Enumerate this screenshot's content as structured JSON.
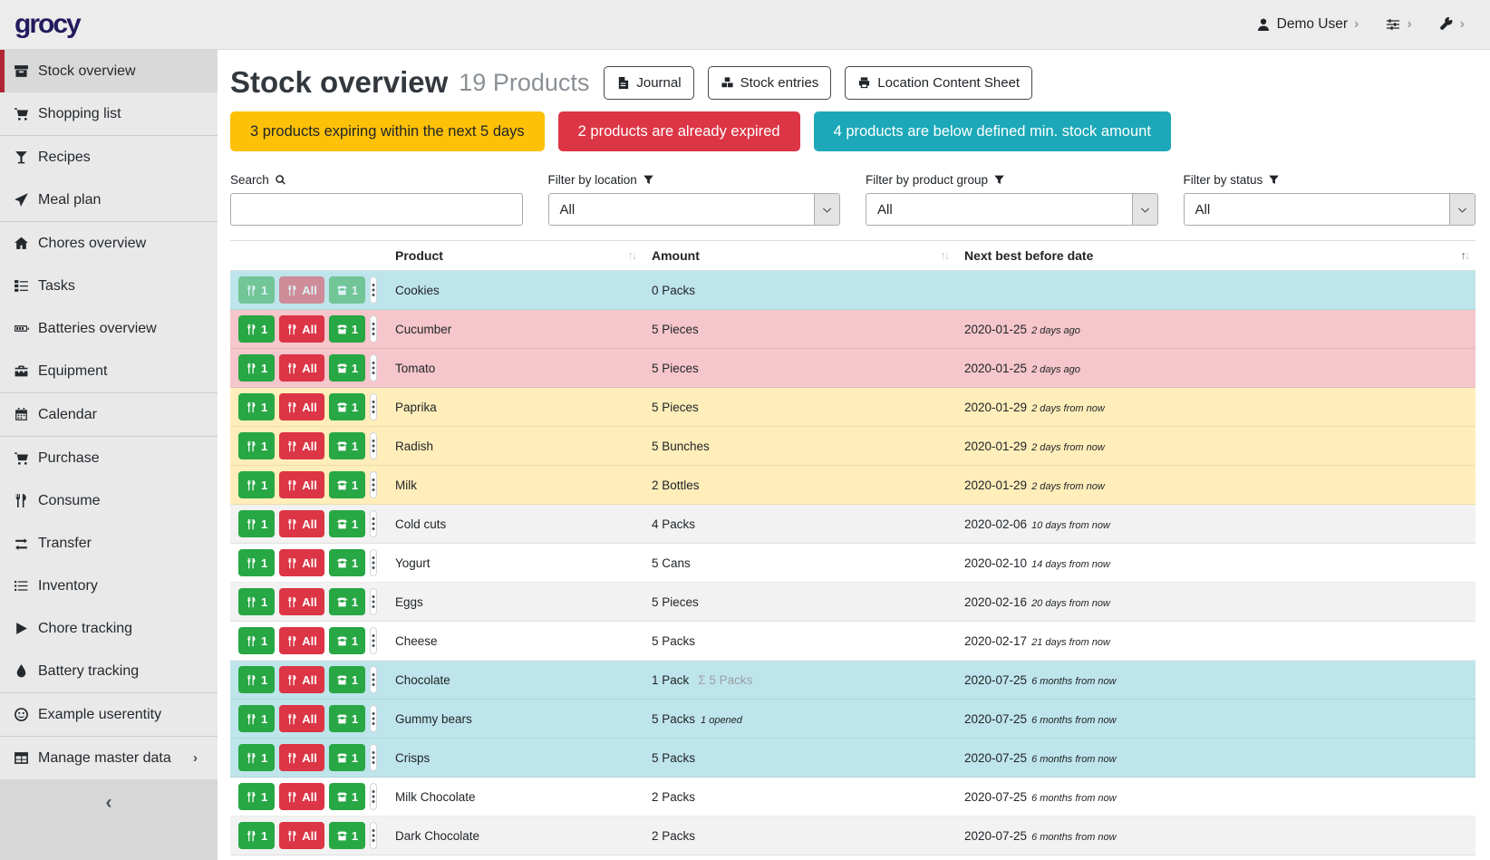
{
  "app": {
    "logo": "grocy"
  },
  "topbar": {
    "user_label": "Demo User"
  },
  "icons": {
    "chevron_right": "›",
    "collapse_left": "‹",
    "sort_up": "↑",
    "sort_down": "↓",
    "sigma": "Σ"
  },
  "colors": {
    "accent_red": "#b02535",
    "success": "#28a745",
    "danger": "#dc3545",
    "warning": "#ffc107",
    "info": "#1ca8b8",
    "row_info": "#bee5eb",
    "row_danger": "#f5c6cb",
    "row_warning": "#ffeeba"
  },
  "sidebar": {
    "items": [
      {
        "label": "Stock overview",
        "icon": "stock-box-icon",
        "active": true,
        "divider_after": false
      },
      {
        "label": "Shopping list",
        "icon": "shopping-cart-icon",
        "active": false,
        "divider_after": true
      },
      {
        "label": "Recipes",
        "icon": "cocktail-icon",
        "active": false,
        "divider_after": false
      },
      {
        "label": "Meal plan",
        "icon": "paper-plane-icon",
        "active": false,
        "divider_after": true
      },
      {
        "label": "Chores overview",
        "icon": "home-icon",
        "active": false,
        "divider_after": false
      },
      {
        "label": "Tasks",
        "icon": "tasks-icon",
        "active": false,
        "divider_after": false
      },
      {
        "label": "Batteries overview",
        "icon": "battery-icon",
        "active": false,
        "divider_after": false
      },
      {
        "label": "Equipment",
        "icon": "toolbox-icon",
        "active": false,
        "divider_after": true
      },
      {
        "label": "Calendar",
        "icon": "calendar-icon",
        "active": false,
        "divider_after": true
      },
      {
        "label": "Purchase",
        "icon": "shopping-cart-icon",
        "active": false,
        "divider_after": false
      },
      {
        "label": "Consume",
        "icon": "utensils-icon",
        "active": false,
        "divider_after": false
      },
      {
        "label": "Transfer",
        "icon": "transfer-arrows-icon",
        "active": false,
        "divider_after": false
      },
      {
        "label": "Inventory",
        "icon": "list-icon",
        "active": false,
        "divider_after": false
      },
      {
        "label": "Chore tracking",
        "icon": "play-icon",
        "active": false,
        "divider_after": false
      },
      {
        "label": "Battery tracking",
        "icon": "droplet-icon",
        "active": false,
        "divider_after": true
      },
      {
        "label": "Example userentity",
        "icon": "smiley-icon",
        "active": false,
        "divider_after": true
      },
      {
        "label": "Manage master data",
        "icon": "table-grid-icon",
        "active": false,
        "divider_after": false,
        "chevron": true
      }
    ]
  },
  "header": {
    "title": "Stock overview",
    "subtitle": "19 Products",
    "buttons": [
      {
        "label": "Journal",
        "icon": "journal-file-icon"
      },
      {
        "label": "Stock entries",
        "icon": "stock-entries-icon"
      },
      {
        "label": "Location Content Sheet",
        "icon": "printer-icon"
      }
    ]
  },
  "alerts": [
    {
      "text": "3 products expiring within the next 5 days",
      "type": "warning",
      "bg": "#fdc107",
      "fg": "#212529"
    },
    {
      "text": "2 products are already expired",
      "type": "danger",
      "bg": "#dc3545",
      "fg": "#ffffff"
    },
    {
      "text": "4 products are below defined min. stock amount",
      "type": "info",
      "bg": "#1ca8b8",
      "fg": "#ffffff"
    }
  ],
  "filters": {
    "search_label": "Search",
    "location_label": "Filter by location",
    "product_group_label": "Filter by product group",
    "status_label": "Filter by status",
    "search_value": "",
    "all_value": "All"
  },
  "table": {
    "columns": [
      "Product",
      "Amount",
      "Next best before date"
    ],
    "sort_state": [
      "none",
      "none",
      "asc"
    ],
    "row_buttons": {
      "consume_one": "1",
      "consume_all": "All",
      "open_one": "1"
    },
    "rows": [
      {
        "product": "Cookies",
        "amount": "0 Packs",
        "sum": "",
        "opened": "",
        "date": "",
        "note": "",
        "status": "info",
        "muted": true,
        "partial": false
      },
      {
        "product": "Cucumber",
        "amount": "5 Pieces",
        "sum": "",
        "opened": "",
        "date": "2020-01-25",
        "note": "2 days ago",
        "status": "danger",
        "muted": false,
        "partial": false
      },
      {
        "product": "Tomato",
        "amount": "5 Pieces",
        "sum": "",
        "opened": "",
        "date": "2020-01-25",
        "note": "2 days ago",
        "status": "danger",
        "muted": false,
        "partial": false
      },
      {
        "product": "Paprika",
        "amount": "5 Pieces",
        "sum": "",
        "opened": "",
        "date": "2020-01-29",
        "note": "2 days from now",
        "status": "warning",
        "muted": false,
        "partial": false
      },
      {
        "product": "Radish",
        "amount": "5 Bunches",
        "sum": "",
        "opened": "",
        "date": "2020-01-29",
        "note": "2 days from now",
        "status": "warning",
        "muted": false,
        "partial": false
      },
      {
        "product": "Milk",
        "amount": "2 Bottles",
        "sum": "",
        "opened": "",
        "date": "2020-01-29",
        "note": "2 days from now",
        "status": "warning",
        "muted": false,
        "partial": false
      },
      {
        "product": "Cold cuts",
        "amount": "4 Packs",
        "sum": "",
        "opened": "",
        "date": "2020-02-06",
        "note": "10 days from now",
        "status": "",
        "muted": false,
        "partial": false
      },
      {
        "product": "Yogurt",
        "amount": "5 Cans",
        "sum": "",
        "opened": "",
        "date": "2020-02-10",
        "note": "14 days from now",
        "status": "",
        "muted": false,
        "partial": false
      },
      {
        "product": "Eggs",
        "amount": "5 Pieces",
        "sum": "",
        "opened": "",
        "date": "2020-02-16",
        "note": "20 days from now",
        "status": "",
        "muted": false,
        "partial": false
      },
      {
        "product": "Cheese",
        "amount": "5 Packs",
        "sum": "",
        "opened": "",
        "date": "2020-02-17",
        "note": "21 days from now",
        "status": "",
        "muted": false,
        "partial": false
      },
      {
        "product": "Chocolate",
        "amount": "1 Pack",
        "sum": "5 Packs",
        "opened": "",
        "date": "2020-07-25",
        "note": "6 months from now",
        "status": "info",
        "muted": false,
        "partial": false
      },
      {
        "product": "Gummy bears",
        "amount": "5 Packs",
        "sum": "",
        "opened": "1 opened",
        "date": "2020-07-25",
        "note": "6 months from now",
        "status": "info",
        "muted": false,
        "partial": false
      },
      {
        "product": "Crisps",
        "amount": "5 Packs",
        "sum": "",
        "opened": "",
        "date": "2020-07-25",
        "note": "6 months from now",
        "status": "info",
        "muted": false,
        "partial": false
      },
      {
        "product": "Milk Chocolate",
        "amount": "2 Packs",
        "sum": "",
        "opened": "",
        "date": "2020-07-25",
        "note": "6 months from now",
        "status": "",
        "muted": false,
        "partial": false
      },
      {
        "product": "Dark Chocolate",
        "amount": "2 Packs",
        "sum": "",
        "opened": "",
        "date": "2020-07-25",
        "note": "6 months from now",
        "status": "",
        "muted": false,
        "partial": false
      },
      {
        "product": "",
        "amount": "",
        "sum": "",
        "opened": "",
        "date": "",
        "note": "",
        "status": "",
        "muted": false,
        "partial": true
      }
    ]
  }
}
